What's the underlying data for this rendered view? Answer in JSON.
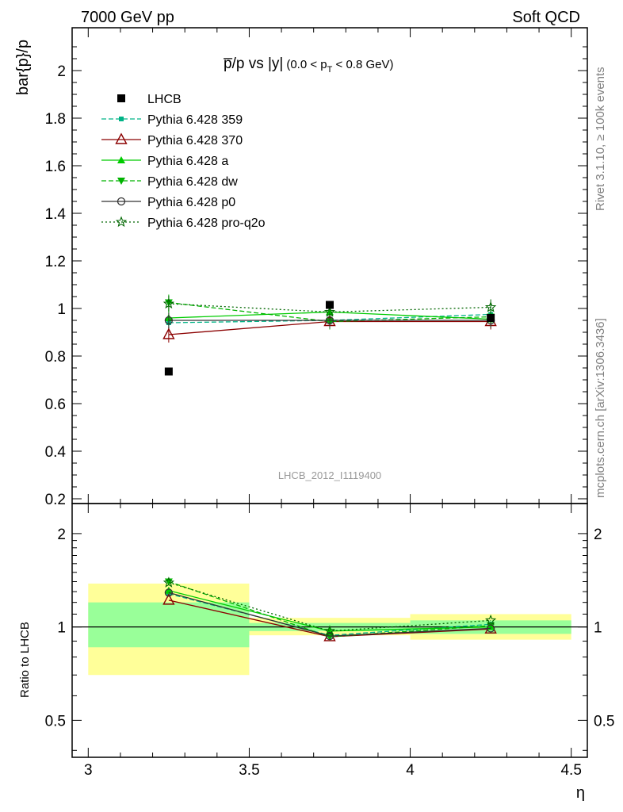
{
  "header": {
    "left": "7000 GeV pp",
    "right": "Soft QCD"
  },
  "side_labels": {
    "rivet": "Rivet 3.1.10, ≥ 100k events",
    "mcplots": "mcplots.cern.ch [arXiv:1306.3436]"
  },
  "colors": {
    "data": "#000000",
    "p359": "#00b386",
    "p370": "#8b0000",
    "pa": "#00cc00",
    "pdw": "#00b300",
    "pp0": "#333333",
    "pq2o": "#006600",
    "band_yellow": "#ffff99",
    "band_green": "#99ff99"
  },
  "chart_data": [
    {
      "type": "line",
      "title_main": "p̅/p vs |y|",
      "title_sub": "(0.0 < p",
      "title_sub_sub": "T",
      "title_sub_tail": " < 0.8 GeV)",
      "ylabel": "bar{p}/p",
      "watermark": "LHCB_2012_I1119400",
      "xlim": [
        2.95,
        4.55
      ],
      "ylim": [
        0.18,
        2.18
      ],
      "yticks": [
        0.2,
        0.4,
        0.6,
        0.8,
        1,
        1.2,
        1.4,
        1.6,
        1.8,
        2
      ],
      "ytick_labels": [
        "0.2",
        "0.4",
        "0.6",
        "0.8",
        "1",
        "1.2",
        "1.4",
        "1.6",
        "1.8",
        "2"
      ],
      "x": [
        3.25,
        3.75,
        4.25
      ],
      "series": [
        {
          "name": "LHCB",
          "key": "data",
          "values": [
            0.735,
            1.015,
            0.96
          ],
          "marker": "square",
          "dash": "none"
        },
        {
          "name": "Pythia 6.428 359",
          "key": "p359",
          "values": [
            0.94,
            0.95,
            0.975
          ],
          "marker": "smallsquare",
          "dash": "6,3"
        },
        {
          "name": "Pythia 6.428 370",
          "key": "p370",
          "values": [
            0.89,
            0.945,
            0.945
          ],
          "marker": "opentriangle",
          "dash": "none"
        },
        {
          "name": "Pythia 6.428 a",
          "key": "pa",
          "values": [
            0.96,
            0.985,
            0.955
          ],
          "marker": "triangle",
          "dash": "none"
        },
        {
          "name": "Pythia 6.428 dw",
          "key": "pdw",
          "values": [
            1.025,
            0.945,
            0.965
          ],
          "marker": "invtriangle",
          "dash": "6,3"
        },
        {
          "name": "Pythia 6.428 p0",
          "key": "pp0",
          "values": [
            0.95,
            0.95,
            0.95
          ],
          "marker": "opencircle",
          "dash": "none"
        },
        {
          "name": "Pythia 6.428 pro-q2o",
          "key": "pq2o",
          "values": [
            1.02,
            0.985,
            1.005
          ],
          "marker": "star",
          "dash": "2,3"
        }
      ]
    },
    {
      "type": "line",
      "ylabel": "Ratio to LHCB",
      "xlabel": "η",
      "scale": "log",
      "xlim": [
        2.95,
        4.55
      ],
      "ylim": [
        0.38,
        2.5
      ],
      "xticks": [
        3,
        3.5,
        4,
        4.5
      ],
      "xtick_labels": [
        "3",
        "3.5",
        "4",
        "4.5"
      ],
      "ytick_labels_major": [
        "0.5",
        "1",
        "2"
      ],
      "yticks_major": [
        0.5,
        1,
        2
      ],
      "bands": [
        {
          "x0": 3.0,
          "x1": 3.5,
          "yellow": [
            0.7,
            1.38
          ],
          "green": [
            0.86,
            1.2
          ]
        },
        {
          "x0": 3.5,
          "x1": 4.0,
          "yellow": [
            0.94,
            1.07
          ],
          "green": [
            0.97,
            1.03
          ]
        },
        {
          "x0": 4.0,
          "x1": 4.5,
          "yellow": [
            0.91,
            1.1
          ],
          "green": [
            0.95,
            1.05
          ]
        }
      ],
      "x": [
        3.25,
        3.75,
        4.25
      ],
      "series": [
        {
          "name": "Pythia 6.428 359",
          "key": "p359",
          "values": [
            1.28,
            0.94,
            1.02
          ],
          "marker": "smallsquare",
          "dash": "6,3"
        },
        {
          "name": "Pythia 6.428 370",
          "key": "p370",
          "values": [
            1.22,
            0.93,
            0.985
          ],
          "marker": "opentriangle",
          "dash": "none"
        },
        {
          "name": "Pythia 6.428 a",
          "key": "pa",
          "values": [
            1.31,
            0.97,
            1.0
          ],
          "marker": "triangle",
          "dash": "none"
        },
        {
          "name": "Pythia 6.428 dw",
          "key": "pdw",
          "values": [
            1.4,
            0.93,
            1.01
          ],
          "marker": "invtriangle",
          "dash": "6,3"
        },
        {
          "name": "Pythia 6.428 p0",
          "key": "pp0",
          "values": [
            1.29,
            0.935,
            0.99
          ],
          "marker": "opencircle",
          "dash": "none"
        },
        {
          "name": "Pythia 6.428 pro-q2o",
          "key": "pq2o",
          "values": [
            1.39,
            0.97,
            1.05
          ],
          "marker": "star",
          "dash": "2,3"
        }
      ]
    }
  ]
}
